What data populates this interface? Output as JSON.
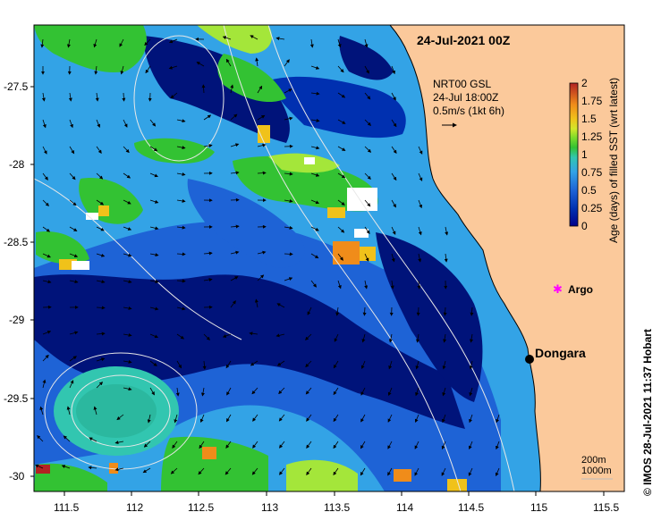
{
  "map": {
    "title": "24-Jul-2021 00Z",
    "current_label_line1": "NRT00 GSL",
    "current_label_line2": "24-Jul 18:00Z",
    "current_label_line3": "0.5m/s (1kt 6h)",
    "place_dongara": "Dongara",
    "place_argo": "Argo",
    "depth_label_200": "200m",
    "depth_label_1000": "1000m",
    "credit": "© IMOS 28-Jul-2021 11:37 Hobart",
    "lat_ticks": [
      "-27.5",
      "-28",
      "-28.5",
      "-29",
      "-29.5",
      "-30"
    ],
    "lon_ticks": [
      "111.5",
      "112",
      "112.5",
      "113",
      "113.5",
      "114",
      "114.5",
      "115",
      "115.5"
    ]
  },
  "colorbar": {
    "label": "Age (days) of filled SST (wrt latest)",
    "ticks": [
      "2",
      "1.75",
      "1.5",
      "1.25",
      "1",
      "0.75",
      "0.5",
      "0.25",
      "0"
    ],
    "colors": [
      "#b22222",
      "#d2691e",
      "#ff8c00",
      "#ffa500",
      "#ffd700",
      "#adff2f",
      "#32cd32",
      "#00c000",
      "#00bfff",
      "#1e90ff",
      "#0040c0",
      "#00008b"
    ]
  },
  "colors": {
    "land": "#fbc99b",
    "deep": "#00137a",
    "mid": "#1e63d6",
    "light": "#33a3e6",
    "teal": "#32c6b0",
    "green": "#33c233",
    "lime": "#a4e63a",
    "yellow": "#f0c21a",
    "orange": "#f08c1a"
  }
}
